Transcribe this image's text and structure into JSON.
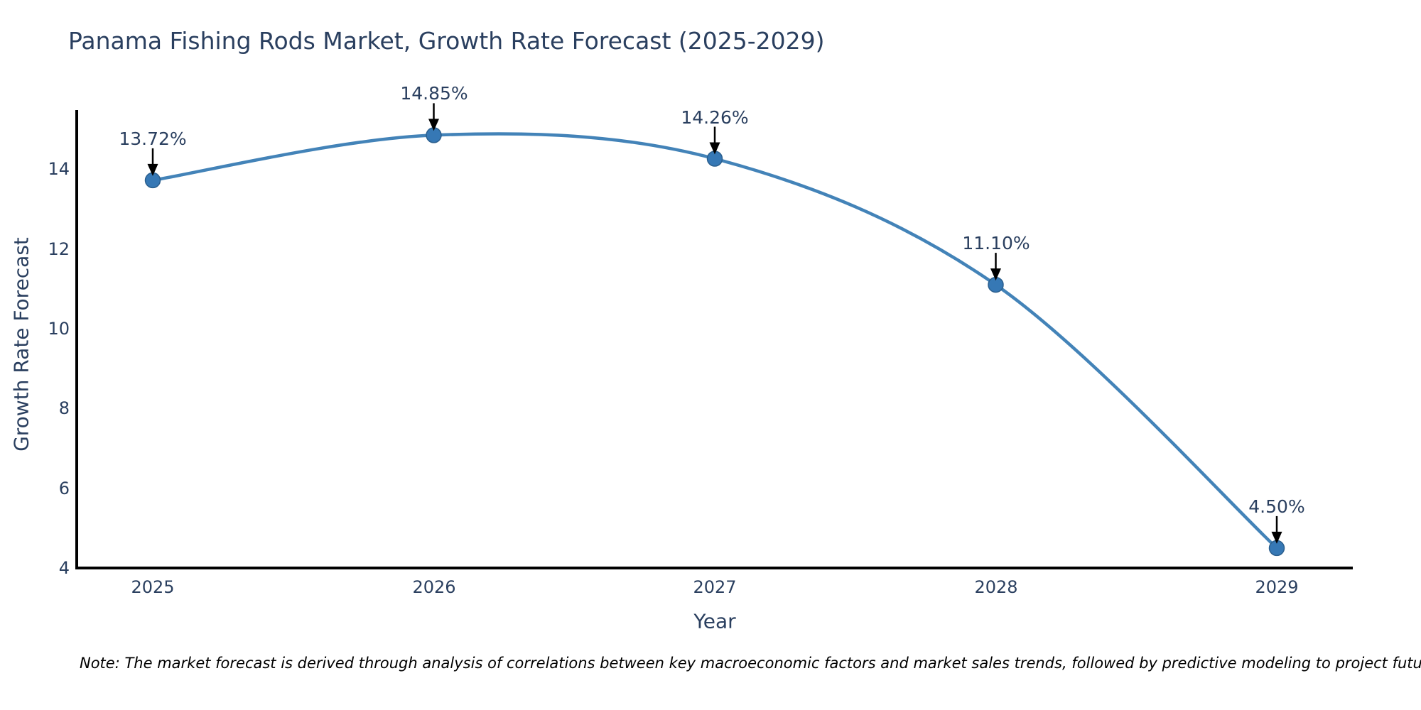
{
  "page": {
    "background": "#ffffff"
  },
  "title": "Panama Fishing Rods Market, Growth Rate Forecast (2025-2029)",
  "note": "Note: The market forecast is derived through analysis of correlations between key macroeconomic factors and market sales trends, followed by predictive modeling to project future sales",
  "chart_data": {
    "type": "line",
    "title": "Panama Fishing Rods Market, Growth Rate Forecast (2025-2029)",
    "xlabel": "Year",
    "ylabel": "Growth Rate Forecast",
    "categories": [
      "2025",
      "2026",
      "2027",
      "2028",
      "2029"
    ],
    "series": [
      {
        "name": "Growth Rate Forecast",
        "values": [
          13.72,
          14.85,
          14.26,
          11.1,
          4.5
        ]
      }
    ],
    "point_labels": [
      "13.72%",
      "14.85%",
      "14.26%",
      "11.10%",
      "4.50%"
    ],
    "yticks": [
      4,
      6,
      8,
      10,
      12,
      14
    ],
    "ylim": [
      4,
      15.48
    ],
    "grid": false,
    "legend_position": "none",
    "line_shape": "spline",
    "annotations": "each point labeled with percentage and a black arrow pointing down to the marker",
    "colors": {
      "line": "#4383b8",
      "marker_fill": "#3678b5",
      "marker_edge": "#2b5f8e",
      "axis": "#000000",
      "arrow": "#000000",
      "text": "#2a3f5f",
      "note_text": "#000000"
    }
  }
}
